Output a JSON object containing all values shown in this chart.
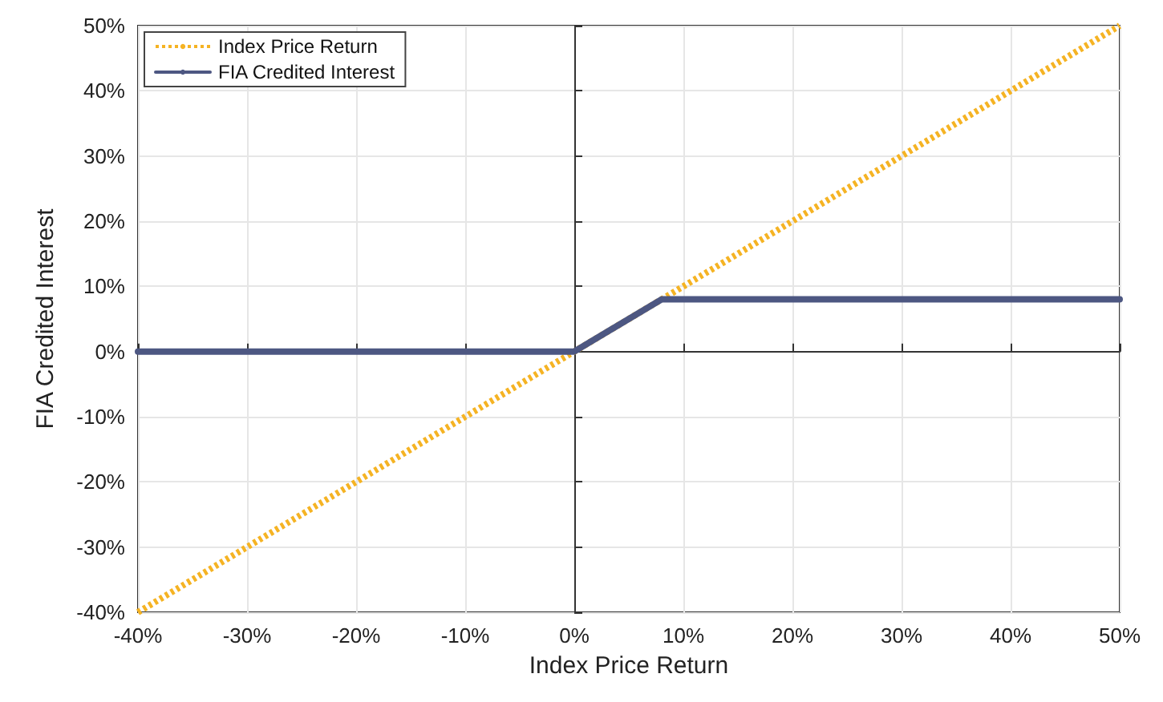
{
  "chart_data": {
    "type": "line",
    "xlabel": "Index Price Return",
    "ylabel": "FIA Credited Interest",
    "series": [
      {
        "name": "Index Price Return",
        "color": "#f5b323",
        "x": [
          -40,
          50
        ],
        "values": [
          -40,
          50
        ],
        "line_style": "dotted"
      },
      {
        "name": "FIA Credited Interest",
        "color": "#4d5782",
        "x": [
          -40,
          0,
          8,
          50
        ],
        "values": [
          0,
          0,
          8,
          8
        ],
        "line_style": "solid"
      }
    ],
    "xlim": [
      -40,
      50
    ],
    "ylim": [
      -40,
      50
    ],
    "xticks": [
      {
        "value": -40,
        "label": "-40%"
      },
      {
        "value": -30,
        "label": "-30%"
      },
      {
        "value": -20,
        "label": "-20%"
      },
      {
        "value": -10,
        "label": "-10%"
      },
      {
        "value": 0,
        "label": "0%"
      },
      {
        "value": 10,
        "label": "10%"
      },
      {
        "value": 20,
        "label": "20%"
      },
      {
        "value": 30,
        "label": "30%"
      },
      {
        "value": 40,
        "label": "40%"
      },
      {
        "value": 50,
        "label": "50%"
      }
    ],
    "yticks": [
      {
        "value": -40,
        "label": "-40%"
      },
      {
        "value": -30,
        "label": "-30%"
      },
      {
        "value": -20,
        "label": "-20%"
      },
      {
        "value": -10,
        "label": "-10%"
      },
      {
        "value": 0,
        "label": "0%"
      },
      {
        "value": 10,
        "label": "10%"
      },
      {
        "value": 20,
        "label": "20%"
      },
      {
        "value": 30,
        "label": "30%"
      },
      {
        "value": 40,
        "label": "40%"
      },
      {
        "value": 50,
        "label": "50%"
      }
    ],
    "grid": true,
    "legend": "top left",
    "marker": "none"
  }
}
